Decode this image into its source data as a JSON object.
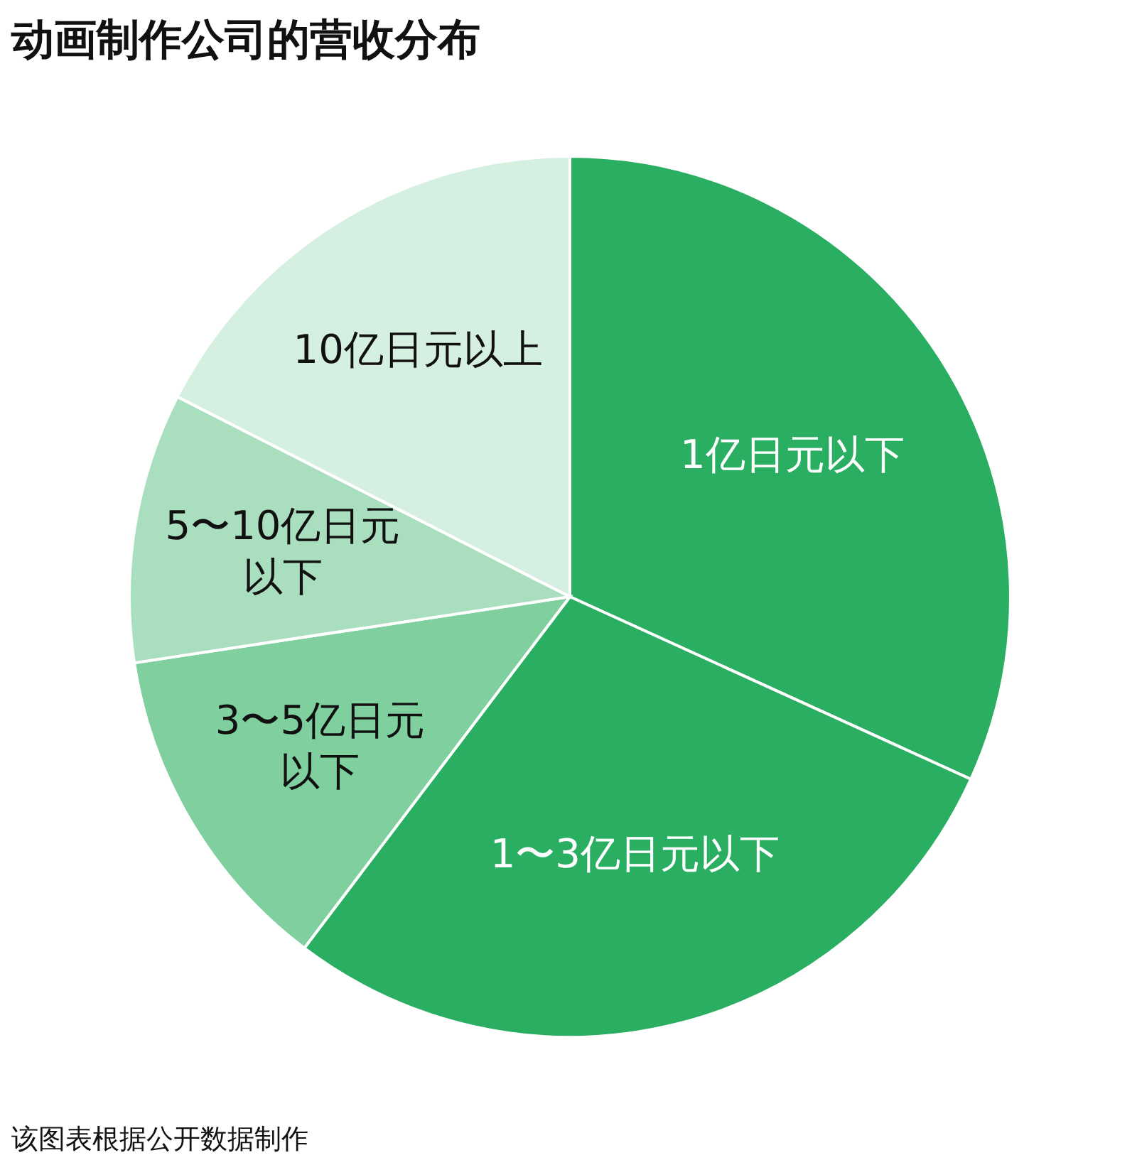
{
  "chart_data": {
    "type": "pie",
    "title": "动画制作公司的营收分布",
    "categories": [
      "1亿日元以下",
      "1〜3亿日元以下",
      "3〜5亿日元以下",
      "5〜10亿日元以下",
      "10亿日元以上"
    ],
    "values": [
      31.8,
      28.5,
      12.3,
      9.9,
      17.5
    ],
    "colors": [
      "#2aae62",
      "#2aae62",
      "#7fcf9f",
      "#a9dfbf",
      "#d5efe0"
    ],
    "annotations": [
      "该图表根据公开数据制作"
    ]
  }
}
